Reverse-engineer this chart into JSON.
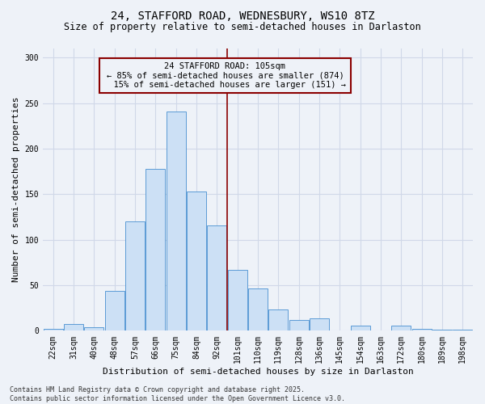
{
  "title": "24, STAFFORD ROAD, WEDNESBURY, WS10 8TZ",
  "subtitle": "Size of property relative to semi-detached houses in Darlaston",
  "xlabel": "Distribution of semi-detached houses by size in Darlaston",
  "ylabel": "Number of semi-detached properties",
  "categories": [
    "22sqm",
    "31sqm",
    "40sqm",
    "48sqm",
    "57sqm",
    "66sqm",
    "75sqm",
    "84sqm",
    "92sqm",
    "101sqm",
    "110sqm",
    "119sqm",
    "128sqm",
    "136sqm",
    "145sqm",
    "154sqm",
    "163sqm",
    "172sqm",
    "180sqm",
    "189sqm",
    "198sqm"
  ],
  "values": [
    2,
    7,
    4,
    44,
    120,
    178,
    241,
    153,
    116,
    67,
    46,
    23,
    12,
    14,
    0,
    6,
    0,
    6,
    2,
    1,
    1
  ],
  "bar_color": "#cce0f5",
  "bar_edge_color": "#5b9bd5",
  "property_label": "24 STAFFORD ROAD: 105sqm",
  "pct_smaller": 85,
  "n_smaller": 874,
  "pct_larger": 15,
  "n_larger": 151,
  "vline_x": 8.5,
  "vline_color": "#8b0000",
  "grid_color": "#d0d8e8",
  "background_color": "#eef2f8",
  "footer": "Contains HM Land Registry data © Crown copyright and database right 2025.\nContains public sector information licensed under the Open Government Licence v3.0.",
  "ylim": [
    0,
    310
  ],
  "yticks": [
    0,
    50,
    100,
    150,
    200,
    250,
    300
  ],
  "title_fontsize": 10,
  "subtitle_fontsize": 8.5,
  "axis_label_fontsize": 8,
  "tick_fontsize": 7,
  "footer_fontsize": 6,
  "ann_fontsize": 7.5
}
